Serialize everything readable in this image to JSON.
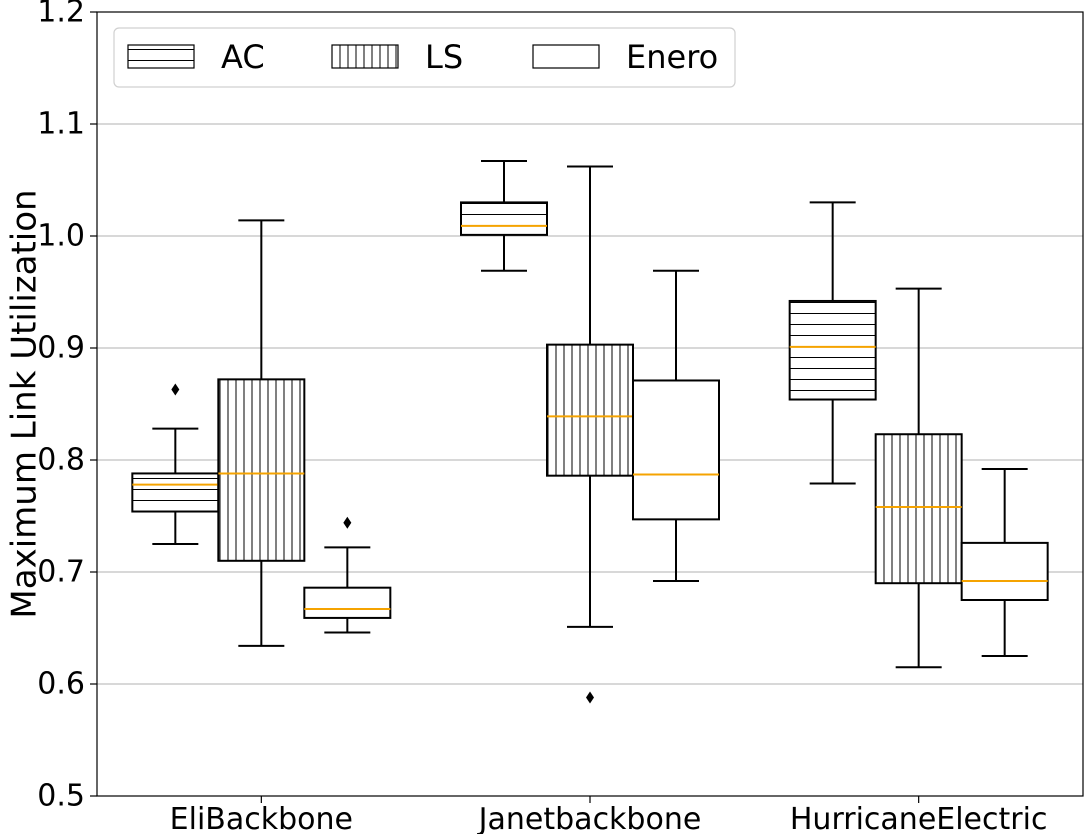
{
  "chart_data": {
    "type": "boxplot",
    "ylabel": "Maximum Link Utilization",
    "xlabel": "",
    "ylim": [
      0.5,
      1.2
    ],
    "yticks": [
      "0.5",
      "0.6",
      "0.7",
      "0.8",
      "0.9",
      "1.0",
      "1.1",
      "1.2"
    ],
    "grid": "horizontal",
    "legend_position": "top-left",
    "median_color": "#f5a300",
    "categories": [
      "EliBackbone",
      "Janetbackbone",
      "HurricaneElectric"
    ],
    "series": [
      {
        "name": "AC",
        "hatch": "horizontal",
        "boxes": [
          {
            "whislo": 0.725,
            "q1": 0.754,
            "med": 0.778,
            "q3": 0.788,
            "whishi": 0.828,
            "fliers": [
              0.863
            ]
          },
          {
            "whislo": 0.969,
            "q1": 1.001,
            "med": 1.009,
            "q3": 1.03,
            "whishi": 1.067,
            "fliers": []
          },
          {
            "whislo": 0.779,
            "q1": 0.854,
            "med": 0.901,
            "q3": 0.942,
            "whishi": 1.03,
            "fliers": []
          }
        ]
      },
      {
        "name": "LS",
        "hatch": "vertical",
        "boxes": [
          {
            "whislo": 0.634,
            "q1": 0.71,
            "med": 0.788,
            "q3": 0.872,
            "whishi": 1.014,
            "fliers": []
          },
          {
            "whislo": 0.651,
            "q1": 0.786,
            "med": 0.839,
            "q3": 0.903,
            "whishi": 1.062,
            "fliers": [
              0.588
            ]
          },
          {
            "whislo": 0.615,
            "q1": 0.69,
            "med": 0.758,
            "q3": 0.823,
            "whishi": 0.953,
            "fliers": []
          }
        ]
      },
      {
        "name": "Enero",
        "hatch": "none",
        "boxes": [
          {
            "whislo": 0.646,
            "q1": 0.659,
            "med": 0.667,
            "q3": 0.686,
            "whishi": 0.722,
            "fliers": [
              0.744
            ]
          },
          {
            "whislo": 0.692,
            "q1": 0.747,
            "med": 0.787,
            "q3": 0.871,
            "whishi": 0.969,
            "fliers": []
          },
          {
            "whislo": 0.625,
            "q1": 0.675,
            "med": 0.692,
            "q3": 0.726,
            "whishi": 0.792,
            "fliers": []
          }
        ]
      }
    ]
  }
}
